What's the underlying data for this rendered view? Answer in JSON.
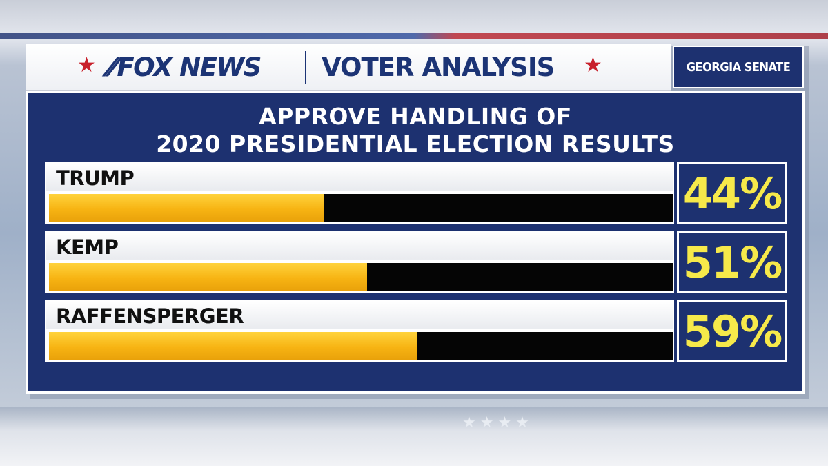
{
  "header": {
    "logo_text": "FOX NEWS",
    "title": "VOTER ANALYSIS",
    "tag": "GEORGIA SENATE"
  },
  "chart_data": {
    "type": "bar",
    "orientation": "horizontal",
    "title_line1": "APPROVE HANDLING OF",
    "title_line2": "2020 PRESIDENTIAL ELECTION RESULTS",
    "categories": [
      "TRUMP",
      "KEMP",
      "RAFFENSPERGER"
    ],
    "values": [
      44,
      51,
      59
    ],
    "value_labels": [
      "44%",
      "51%",
      "59%"
    ],
    "xlim": [
      0,
      100
    ],
    "grid": false,
    "colors": {
      "fill": "#f7b413",
      "track": "#050505",
      "panel": "#1d3170",
      "value_text": "#f6e94a"
    }
  }
}
